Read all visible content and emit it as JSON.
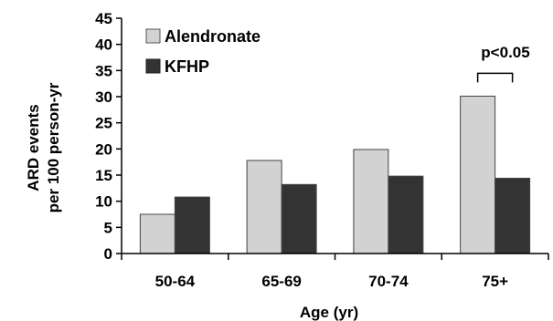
{
  "chart_data": {
    "type": "bar",
    "title": "",
    "xlabel": "Age (yr)",
    "ylabel_lines": [
      "ARD events",
      "per 100 person-yr"
    ],
    "categories": [
      "50-64",
      "65-69",
      "70-74",
      "75+"
    ],
    "series": [
      {
        "name": "Alendronate",
        "color": "#d2d2d2",
        "values": [
          7.5,
          17.8,
          19.9,
          30.1
        ]
      },
      {
        "name": "KFHP",
        "color": "#333333",
        "values": [
          10.8,
          13.2,
          14.8,
          14.4
        ]
      }
    ],
    "ylim": [
      0,
      45
    ],
    "yticks": [
      0,
      5,
      10,
      15,
      20,
      25,
      30,
      35,
      40,
      45
    ],
    "grid": false,
    "legend": "top-left",
    "annotation": {
      "text": "p<0.05",
      "category": "75+"
    }
  }
}
